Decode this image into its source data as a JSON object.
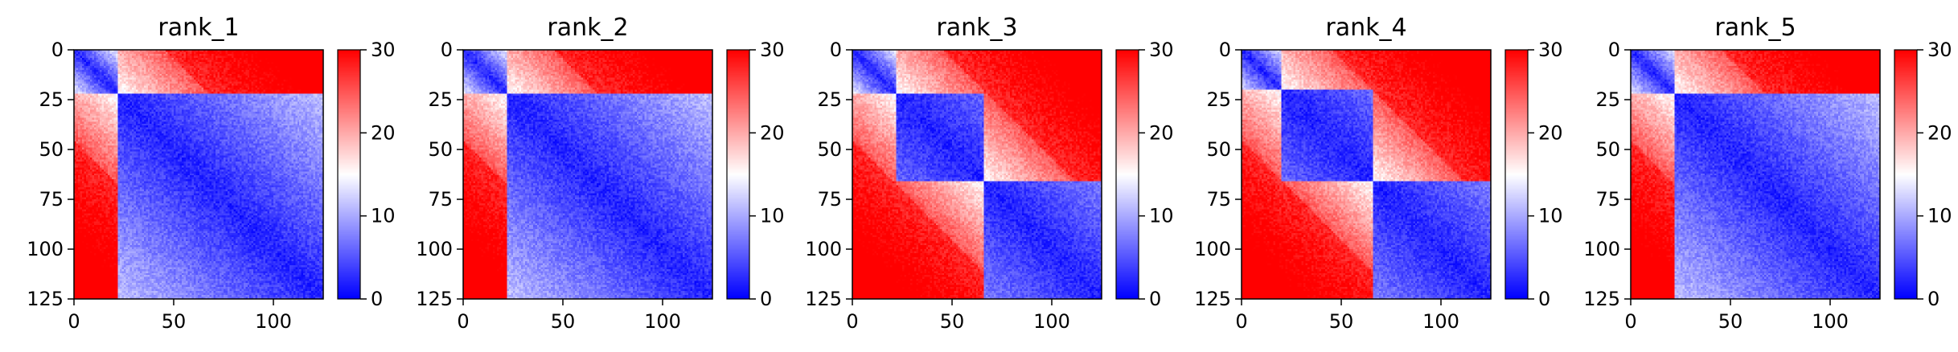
{
  "chart_data": [
    {
      "type": "heatmap",
      "title": "rank_1",
      "x_ticks": [
        0,
        50,
        100
      ],
      "y_ticks": [
        0,
        25,
        50,
        75,
        100,
        125
      ],
      "xlim": [
        0,
        125
      ],
      "ylim": [
        125,
        0
      ],
      "colorbar": {
        "min": 0,
        "max": 30,
        "ticks": [
          0,
          10,
          20,
          30
        ],
        "colormap": "bwr"
      },
      "matrix_pattern": "distance-map-two-domains",
      "domain_boundaries": [
        22
      ]
    },
    {
      "type": "heatmap",
      "title": "rank_2",
      "x_ticks": [
        0,
        50,
        100
      ],
      "y_ticks": [
        0,
        25,
        50,
        75,
        100,
        125
      ],
      "xlim": [
        0,
        125
      ],
      "ylim": [
        125,
        0
      ],
      "colorbar": {
        "min": 0,
        "max": 30,
        "ticks": [
          0,
          10,
          20,
          30
        ],
        "colormap": "bwr"
      },
      "matrix_pattern": "distance-map-two-domains",
      "domain_boundaries": [
        22
      ]
    },
    {
      "type": "heatmap",
      "title": "rank_3",
      "x_ticks": [
        0,
        50,
        100
      ],
      "y_ticks": [
        0,
        25,
        50,
        75,
        100,
        125
      ],
      "xlim": [
        0,
        125
      ],
      "ylim": [
        125,
        0
      ],
      "colorbar": {
        "min": 0,
        "max": 30,
        "ticks": [
          0,
          10,
          20,
          30
        ],
        "colormap": "bwr"
      },
      "matrix_pattern": "distance-map-three-domains",
      "domain_boundaries": [
        22,
        66
      ]
    },
    {
      "type": "heatmap",
      "title": "rank_4",
      "x_ticks": [
        0,
        50,
        100
      ],
      "y_ticks": [
        0,
        25,
        50,
        75,
        100,
        125
      ],
      "xlim": [
        0,
        125
      ],
      "ylim": [
        125,
        0
      ],
      "colorbar": {
        "min": 0,
        "max": 30,
        "ticks": [
          0,
          10,
          20,
          30
        ],
        "colormap": "bwr"
      },
      "matrix_pattern": "distance-map-three-domains",
      "domain_boundaries": [
        20,
        66
      ]
    },
    {
      "type": "heatmap",
      "title": "rank_5",
      "x_ticks": [
        0,
        50,
        100
      ],
      "y_ticks": [
        0,
        25,
        50,
        75,
        100,
        125
      ],
      "xlim": [
        0,
        125
      ],
      "ylim": [
        125,
        0
      ],
      "colorbar": {
        "min": 0,
        "max": 30,
        "ticks": [
          0,
          10,
          20,
          30
        ],
        "colormap": "bwr"
      },
      "matrix_pattern": "distance-map-two-domains",
      "domain_boundaries": [
        22
      ]
    }
  ]
}
